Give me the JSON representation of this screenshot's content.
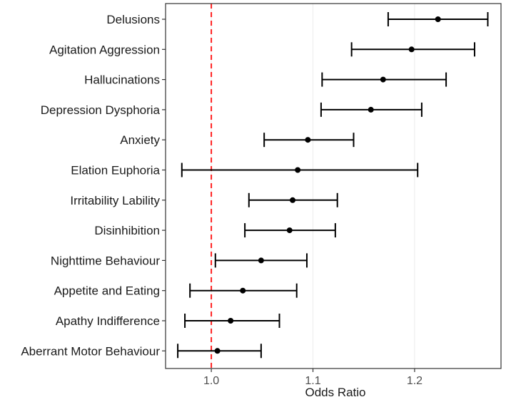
{
  "chart_data": {
    "type": "forest",
    "title": "",
    "xlabel": "Odds Ratio",
    "ylabel": "",
    "xlim": [
      0.955,
      1.285
    ],
    "xticks": [
      1.0,
      1.1,
      1.2
    ],
    "xtick_labels": [
      "1.0",
      "1.1",
      "1.2"
    ],
    "grid": "vertical major lines",
    "reference_line": {
      "x": 1.0,
      "style": "dashed",
      "color": "#ff2020"
    },
    "categories": [
      "Delusions",
      "Agitation Aggression",
      "Hallucinations",
      "Depression Dysphoria",
      "Anxiety",
      "Elation Euphoria",
      "Irritability Lability",
      "Disinhibition",
      "Nighttime Behaviour",
      "Appetite and Eating",
      "Apathy Indifference",
      "Aberrant Motor Behaviour"
    ],
    "estimates": [
      1.223,
      1.197,
      1.169,
      1.157,
      1.095,
      1.085,
      1.08,
      1.077,
      1.049,
      1.031,
      1.019,
      1.006
    ],
    "lower": [
      1.174,
      1.138,
      1.109,
      1.108,
      1.052,
      0.971,
      1.037,
      1.033,
      1.004,
      0.979,
      0.974,
      0.967
    ],
    "upper": [
      1.272,
      1.259,
      1.231,
      1.207,
      1.14,
      1.203,
      1.124,
      1.122,
      1.094,
      1.084,
      1.067,
      1.049
    ]
  },
  "colors": {
    "marks": "#000000",
    "reference_line": "#ff2020",
    "grid": "#ebebeb",
    "axis": "#333333",
    "background": "#ffffff"
  }
}
